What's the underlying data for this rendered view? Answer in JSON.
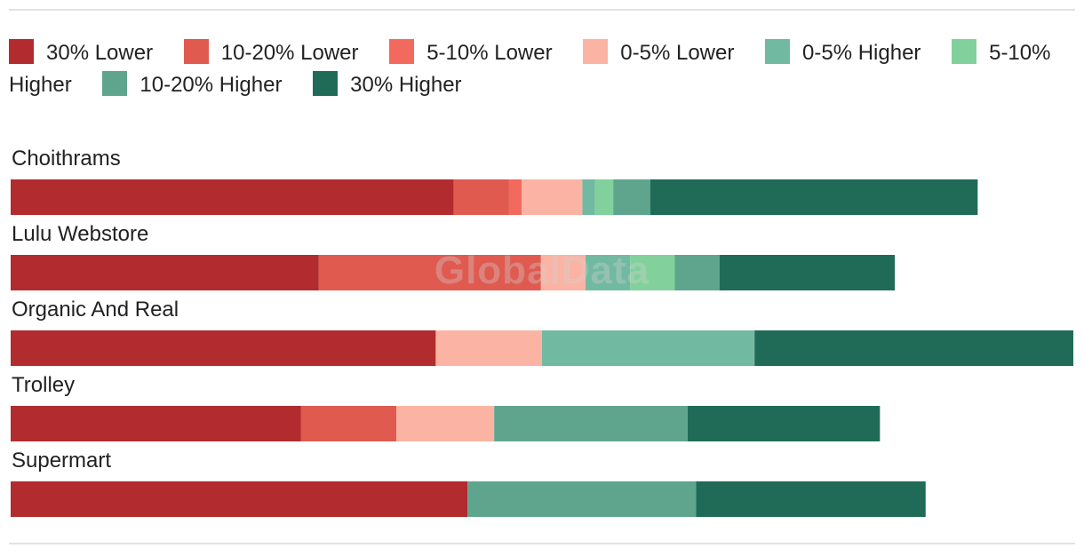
{
  "chart_data": {
    "type": "bar",
    "stacked": true,
    "orientation": "horizontal",
    "categories": [
      "Choithrams",
      "Lulu Webstore",
      "Organic And Real",
      "Trolley",
      "Supermart"
    ],
    "series": [
      {
        "name": "30% Lower",
        "color": "#b22b2e",
        "values": [
          41.7,
          29.0,
          40.0,
          27.3,
          43.0
        ]
      },
      {
        "name": "10-20% Lower",
        "color": "#e05a50",
        "values": [
          5.2,
          20.9,
          0,
          9.0,
          0
        ]
      },
      {
        "name": "5-10% Lower",
        "color": "#f26a5e",
        "values": [
          1.2,
          0,
          0,
          0,
          0
        ]
      },
      {
        "name": "0-5% Lower",
        "color": "#fbb4a3",
        "values": [
          5.7,
          4.2,
          10.0,
          9.2,
          0
        ]
      },
      {
        "name": "0-5% Higher",
        "color": "#72b9a1",
        "values": [
          1.2,
          4.2,
          20.0,
          0,
          0
        ]
      },
      {
        "name": "5-10% Higher",
        "color": "#82d19c",
        "values": [
          1.7,
          4.2,
          0,
          0,
          0
        ]
      },
      {
        "name": "10-20% Higher",
        "color": "#5fa58d",
        "values": [
          3.5,
          4.2,
          0,
          18.2,
          21.5
        ]
      },
      {
        "name": "30% Higher",
        "color": "#206b57",
        "values": [
          30.8,
          16.5,
          30.0,
          18.1,
          21.6
        ]
      }
    ],
    "grid": false,
    "legend": "top",
    "watermark": "GlobalData"
  }
}
